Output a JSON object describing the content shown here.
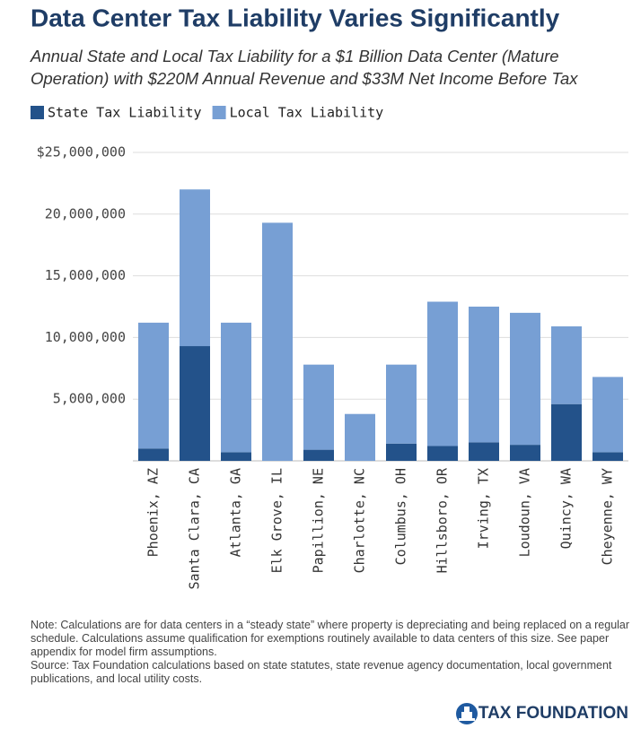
{
  "chart_data": {
    "type": "stacked_bar",
    "title": "Data Center Tax Liability Varies Significantly",
    "subtitle": [
      "Annual State and Local Tax Liability for a $1 Billion Data Center (Mature",
      "Operation) with $220M Annual Revenue and $33M Net Income Before Tax"
    ],
    "categories": [
      "Phoenix, AZ",
      "Santa Clara, CA",
      "Atlanta, GA",
      "Elk Grove, IL",
      "Papillion, NE",
      "Charlotte, NC",
      "Columbus, OH",
      "Hillsboro, OR",
      "Irving, TX",
      "Loudoun, VA",
      "Quincy, WA",
      "Cheyenne, WY"
    ],
    "series": [
      {
        "name": "State Tax Liability",
        "color": "#23528a",
        "values": [
          1000000,
          9300000,
          700000,
          0,
          900000,
          0,
          1400000,
          1200000,
          1500000,
          1300000,
          4600000,
          700000
        ]
      },
      {
        "name": "Local Tax Liability",
        "color": "#779fd4",
        "values": [
          10200000,
          12700000,
          10500000,
          19300000,
          6900000,
          3800000,
          6400000,
          11700000,
          11000000,
          10700000,
          6300000,
          6100000
        ]
      }
    ],
    "ylim": [
      0,
      25000000
    ],
    "yticks": [
      {
        "value": 5000000,
        "label": "5,000,000"
      },
      {
        "value": 10000000,
        "label": "10,000,000"
      },
      {
        "value": 15000000,
        "label": "15,000,000"
      },
      {
        "value": 20000000,
        "label": "20,000,000"
      },
      {
        "value": 25000000,
        "label": "$25,000,000"
      }
    ],
    "grid": true,
    "legend": "top-left"
  },
  "notes": [
    "Note: Calculations are for data centers in a “steady state” where property is depreciating and being replaced on a regular schedule. Calculations assume qualification for exemptions routinely available to data centers of this size. See paper appendix for model firm assumptions.",
    "Source: Tax Foundation calculations based on state statutes, state revenue agency documentation, local government publications, and local utility costs."
  ],
  "logo": "TAX FOUNDATION"
}
